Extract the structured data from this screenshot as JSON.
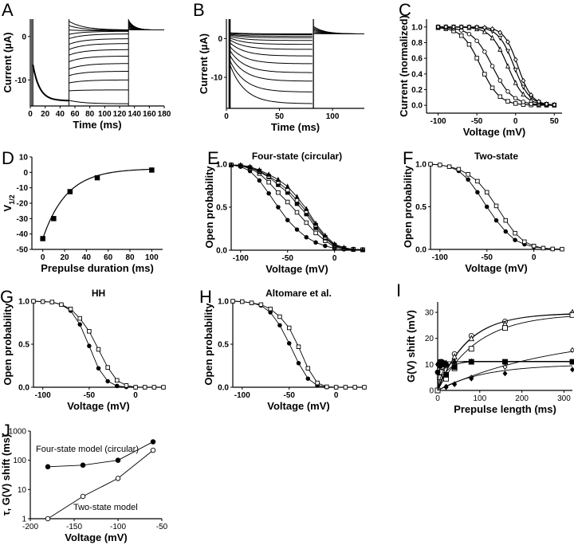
{
  "figure": {
    "panel_letters": [
      "A",
      "B",
      "C",
      "D",
      "E",
      "F",
      "G",
      "H",
      "I",
      "J"
    ]
  },
  "chart_data": [
    {
      "id": "A",
      "type": "line",
      "title": "",
      "xlabel": "Time (ms)",
      "ylabel": "Current (µA)",
      "xlim": [
        0,
        180
      ],
      "ylim": [
        -16,
        4
      ],
      "xticks": [
        0,
        20,
        40,
        60,
        80,
        100,
        120,
        140,
        160,
        180
      ],
      "yticks": [
        0,
        -10
      ],
      "ytick_labels": [
        "0",
        "-10"
      ],
      "prepulse": {
        "t": [
          3,
          5,
          10,
          20,
          30,
          40,
          52
        ],
        "i": [
          -6.5,
          -7,
          -10,
          -13,
          -14,
          -14.5,
          -14.8
        ]
      },
      "test_levels_start": [
        3.5,
        2.5,
        1.5,
        0.5,
        -0.5,
        -1.8,
        -3.0,
        -4.3,
        -5.8,
        -7.5,
        -9.0,
        -10.7,
        -12.5,
        -14.7
      ],
      "test_levels_end": [
        1.5,
        1.4,
        1.3,
        1.2,
        0.6,
        -0.5,
        -1.6,
        -3.0,
        -4.5,
        -6.2,
        -8.0,
        -10.0,
        -12.3,
        -15.5
      ],
      "test_window": [
        52,
        132
      ],
      "tail_window": [
        132,
        180
      ],
      "tail_peak": 3.5,
      "tail_steady": 1.5
    },
    {
      "id": "B",
      "type": "line",
      "title": "",
      "xlabel": "Time (ms)",
      "ylabel": "Current (µA)",
      "xlim": [
        0,
        130
      ],
      "ylim": [
        -18,
        5
      ],
      "xticks": [
        0,
        50,
        100
      ],
      "yticks": [
        0,
        -10
      ],
      "ytick_labels": [
        "0",
        "-10"
      ],
      "test_window": [
        3,
        82
      ],
      "trace_start": [
        1.5,
        1.3,
        1.1,
        0.9,
        0.6,
        0.2,
        -0.3,
        -1.0,
        -2.0,
        -3.0,
        -4.2,
        -5.5,
        -6.5
      ],
      "trace_end": [
        1.2,
        1.0,
        0.6,
        0.2,
        -0.5,
        -1.5,
        -2.8,
        -4.5,
        -6.5,
        -8.8,
        -11.0,
        -13.8,
        -16.8
      ],
      "tail_peak": 3.0,
      "tail_steady": 1.2
    },
    {
      "id": "C",
      "type": "line",
      "title": "",
      "xlabel": "Voltage (mV)",
      "ylabel": "Current (normalized)",
      "xlim": [
        -115,
        60
      ],
      "ylim": [
        -0.1,
        1.1
      ],
      "xticks": [
        -100,
        -50,
        0,
        50
      ],
      "yticks": [
        0.0,
        0.2,
        0.4,
        0.6,
        0.8,
        1.0
      ],
      "ytick_labels": [
        "0.0",
        "0.2",
        "0.4",
        "0.6",
        "0.8",
        "1.0"
      ],
      "series": [
        {
          "name": "curve-1",
          "marker": "square",
          "v_half": -45,
          "slope": 12
        },
        {
          "name": "curve-2",
          "marker": "circle",
          "v_half": -30,
          "slope": 13
        },
        {
          "name": "curve-3",
          "marker": "triangle",
          "v_half": -10,
          "slope": 11
        },
        {
          "name": "curve-4",
          "marker": "inverted-triangle",
          "v_half": -2,
          "slope": 10
        },
        {
          "name": "curve-5",
          "marker": "diamond",
          "v_half": 3,
          "slope": 9
        }
      ],
      "x": [
        -100,
        -90,
        -80,
        -70,
        -60,
        -50,
        -40,
        -30,
        -20,
        -10,
        0,
        10,
        20,
        30,
        40,
        50
      ]
    },
    {
      "id": "D",
      "type": "scatter",
      "title": "",
      "xlabel": "Prepulse duration (ms)",
      "ylabel": "V1/2",
      "ylabel_main": "V",
      "ylabel_sub": "1/2",
      "xlim": [
        -10,
        110
      ],
      "ylim": [
        -50,
        10
      ],
      "xticks": [
        0,
        20,
        40,
        60,
        80,
        100
      ],
      "yticks": [
        10,
        0,
        -10,
        -20,
        -30,
        -40,
        -50
      ],
      "points": {
        "x": [
          0,
          10,
          25,
          50,
          100
        ],
        "y": [
          -43,
          -30,
          -12.5,
          -3.5,
          1.5
        ]
      },
      "fit": {
        "type": "exp",
        "y0": -43,
        "yinf": 2.5,
        "tau": 22
      }
    },
    {
      "id": "E",
      "type": "line",
      "title": "Four-state (circular)",
      "xlabel": "Voltage (mV)",
      "ylabel": "Open probability",
      "xlim": [
        -110,
        30
      ],
      "ylim": [
        0,
        1.0
      ],
      "xticks": [
        -100,
        -50,
        0
      ],
      "yticks": [
        0.0,
        0.5,
        1.0
      ],
      "ytick_labels": [
        "0.0",
        "0.5",
        "1.0"
      ],
      "x": [
        -110,
        -100,
        -90,
        -80,
        -70,
        -60,
        -50,
        -40,
        -30,
        -20,
        -10,
        0,
        10,
        20,
        30
      ],
      "series": [
        {
          "name": "filled-circle",
          "marker": "filled-circle",
          "values": [
            0.99,
            0.97,
            0.92,
            0.81,
            0.66,
            0.5,
            0.35,
            0.24,
            0.15,
            0.09,
            0.05,
            0.02,
            0.01,
            0.005,
            0.003
          ]
        },
        {
          "name": "open-square",
          "marker": "open-square",
          "values": [
            0.99,
            0.98,
            0.95,
            0.89,
            0.79,
            0.67,
            0.56,
            0.44,
            0.32,
            0.2,
            0.11,
            0.04,
            0.02,
            0.01,
            0.005
          ]
        },
        {
          "name": "filled-square",
          "marker": "filled-square",
          "values": [
            0.99,
            0.98,
            0.96,
            0.91,
            0.85,
            0.76,
            0.67,
            0.54,
            0.42,
            0.26,
            0.14,
            0.05,
            0.02,
            0.01,
            0.005
          ]
        },
        {
          "name": "open-square-2",
          "marker": "open-square",
          "values": [
            0.99,
            0.98,
            0.96,
            0.92,
            0.86,
            0.79,
            0.7,
            0.58,
            0.45,
            0.29,
            0.15,
            0.06,
            0.02,
            0.01,
            0.005
          ]
        },
        {
          "name": "filled-triangle",
          "marker": "filled-triangle",
          "values": [
            0.99,
            0.99,
            0.97,
            0.93,
            0.88,
            0.82,
            0.74,
            0.62,
            0.48,
            0.31,
            0.17,
            0.07,
            0.03,
            0.01,
            0.005
          ]
        }
      ]
    },
    {
      "id": "F",
      "type": "line",
      "title": "Two-state",
      "xlabel": "Voltage (mV)",
      "ylabel": "Open probability",
      "xlim": [
        -110,
        30
      ],
      "ylim": [
        0,
        1.0
      ],
      "xticks": [
        -100,
        -50,
        0
      ],
      "yticks": [
        0.0,
        0.5,
        1.0
      ],
      "ytick_labels": [
        "0.0",
        "0.5",
        "1.0"
      ],
      "x": [
        -110,
        -100,
        -90,
        -80,
        -70,
        -60,
        -50,
        -40,
        -30,
        -20,
        -10,
        0,
        10,
        20,
        30
      ],
      "series": [
        {
          "name": "filled-circle",
          "marker": "filled-circle",
          "values": [
            1.0,
            0.99,
            0.97,
            0.92,
            0.82,
            0.67,
            0.5,
            0.34,
            0.21,
            0.11,
            0.06,
            0.03,
            0.015,
            0.005,
            0.003
          ]
        },
        {
          "name": "open-square",
          "marker": "open-square",
          "values": [
            1.0,
            0.99,
            0.97,
            0.94,
            0.88,
            0.8,
            0.67,
            0.51,
            0.34,
            0.19,
            0.09,
            0.04,
            0.015,
            0.005,
            0.003
          ]
        }
      ]
    },
    {
      "id": "G",
      "type": "line",
      "title": "HH",
      "xlabel": "Voltage (mV)",
      "ylabel": "Open probability",
      "xlim": [
        -110,
        30
      ],
      "ylim": [
        0,
        1.0
      ],
      "xticks": [
        -100,
        -50,
        0
      ],
      "yticks": [
        0.0,
        0.5,
        1.0
      ],
      "ytick_labels": [
        "0.0",
        "0.5",
        "1.0"
      ],
      "x": [
        -110,
        -100,
        -90,
        -80,
        -70,
        -60,
        -50,
        -40,
        -30,
        -20,
        -10,
        0,
        10,
        20,
        30
      ],
      "series": [
        {
          "name": "filled-circle",
          "marker": "filled-circle",
          "values": [
            1.0,
            0.995,
            0.99,
            0.96,
            0.89,
            0.73,
            0.48,
            0.22,
            0.07,
            0.015,
            0.003,
            0.0,
            0.0,
            0.0,
            0.0
          ]
        },
        {
          "name": "open-square",
          "marker": "open-square",
          "values": [
            1.0,
            0.995,
            0.99,
            0.96,
            0.91,
            0.8,
            0.65,
            0.44,
            0.23,
            0.08,
            0.02,
            0.0,
            0.0,
            0.0,
            0.0
          ]
        }
      ]
    },
    {
      "id": "H",
      "type": "line",
      "title": "Altomare et al.",
      "xlabel": "Voltage (mV)",
      "ylabel": "Open probability",
      "xlim": [
        -110,
        30
      ],
      "ylim": [
        0,
        1.0
      ],
      "xticks": [
        -100,
        -50,
        0
      ],
      "yticks": [
        0.0,
        0.5,
        1.0
      ],
      "ytick_labels": [
        "0.0",
        "0.5",
        "1.0"
      ],
      "x": [
        -110,
        -100,
        -90,
        -80,
        -70,
        -60,
        -50,
        -40,
        -30,
        -20,
        -10,
        0,
        10,
        20,
        30
      ],
      "series": [
        {
          "name": "filled-circle",
          "marker": "filled-circle",
          "values": [
            1.0,
            0.995,
            0.98,
            0.95,
            0.87,
            0.72,
            0.51,
            0.28,
            0.1,
            0.02,
            0.002,
            0.0,
            0.0,
            0.0,
            0.0
          ]
        },
        {
          "name": "open-square",
          "marker": "open-square",
          "values": [
            1.0,
            0.995,
            0.98,
            0.96,
            0.91,
            0.82,
            0.69,
            0.47,
            0.22,
            0.05,
            0.005,
            0.0,
            0.0,
            0.0,
            0.0
          ]
        }
      ]
    },
    {
      "id": "I",
      "type": "scatter",
      "title": "",
      "xlabel": "Prepulse length (ms)",
      "ylabel": "G(V) shift (mV)",
      "xlim": [
        0,
        320
      ],
      "ylim": [
        0,
        34
      ],
      "xticks": [
        0,
        100,
        200,
        300
      ],
      "yticks": [
        0,
        10,
        20,
        30
      ],
      "series": [
        {
          "name": "open-circle",
          "marker": "open-circle",
          "x": [
            0,
            5,
            10,
            20,
            40,
            80,
            160,
            320
          ],
          "y": [
            0,
            8,
            9,
            9.5,
            14,
            21,
            26.5,
            29.5
          ],
          "fit": {
            "yinf": 29.6,
            "tau": 70
          }
        },
        {
          "name": "open-triangle",
          "marker": "open-triangle",
          "x": [
            0,
            5,
            10,
            20,
            40,
            80,
            160,
            320
          ],
          "y": [
            0,
            7,
            10,
            10,
            13,
            20,
            25.5,
            30
          ],
          "fit": {
            "yinf": 29.8,
            "tau": 72
          }
        },
        {
          "name": "open-square",
          "marker": "open-square",
          "x": [
            0,
            5,
            10,
            20,
            40,
            80,
            160,
            320
          ],
          "y": [
            0,
            5,
            7,
            4.5,
            8.5,
            16,
            24,
            29
          ],
          "fit": {
            "yinf": 29.5,
            "tau": 95
          }
        },
        {
          "name": "filled-circle",
          "marker": "filled-circle",
          "x": [
            0,
            2,
            5,
            8,
            10,
            15,
            20
          ],
          "y": [
            7,
            10,
            11,
            11,
            11,
            10.5,
            10
          ],
          "fit": {
            "yinf": 11,
            "tau": 3
          }
        },
        {
          "name": "filled-triangle",
          "marker": "filled-triangle",
          "x": [
            5,
            10,
            20,
            40,
            80
          ],
          "y": [
            9.5,
            10,
            10.5,
            11.2,
            11
          ],
          "fit": {
            "yinf": 11.2,
            "tau": 12
          }
        },
        {
          "name": "filled-square",
          "marker": "filled-square",
          "x": [
            20,
            40,
            80,
            160,
            320
          ],
          "y": [
            6,
            9,
            11,
            11,
            11
          ],
          "fit": {
            "yinf": 11.2,
            "tau": 20
          }
        },
        {
          "name": "open-diamond",
          "marker": "open-diamond",
          "x": [
            20,
            40,
            80,
            160,
            320
          ],
          "y": [
            1.5,
            2.5,
            5,
            9,
            15.5
          ],
          "fit": {
            "yinf": 22,
            "tau": 280
          }
        },
        {
          "name": "filled-diamond",
          "marker": "filled-diamond",
          "x": [
            20,
            40,
            80,
            160,
            320
          ],
          "y": [
            1.2,
            2.3,
            4.5,
            6.5,
            8
          ],
          "fit": {
            "yinf": 10,
            "tau": 110
          }
        }
      ]
    },
    {
      "id": "J",
      "type": "line",
      "title": "",
      "xlabel": "Voltage (mV)",
      "ylabel": "τ, G(V) shift (ms)",
      "yscale": "log",
      "xlim": [
        -200,
        -50
      ],
      "ylim": [
        1,
        1000
      ],
      "xticks": [
        -200,
        -150,
        -100,
        -50
      ],
      "yticks": [
        1,
        10,
        100,
        1000
      ],
      "annotations": [
        "Four-state model (circular)",
        "Two-state model"
      ],
      "series": [
        {
          "name": "Four-state model (circular)",
          "marker": "filled-circle",
          "x": [
            -180,
            -140,
            -100,
            -60
          ],
          "y": [
            60,
            68,
            100,
            430
          ]
        },
        {
          "name": "Two-state model",
          "marker": "open-circle",
          "x": [
            -180,
            -140,
            -100,
            -60
          ],
          "y": [
            1,
            5.8,
            24,
            220
          ]
        }
      ]
    }
  ]
}
